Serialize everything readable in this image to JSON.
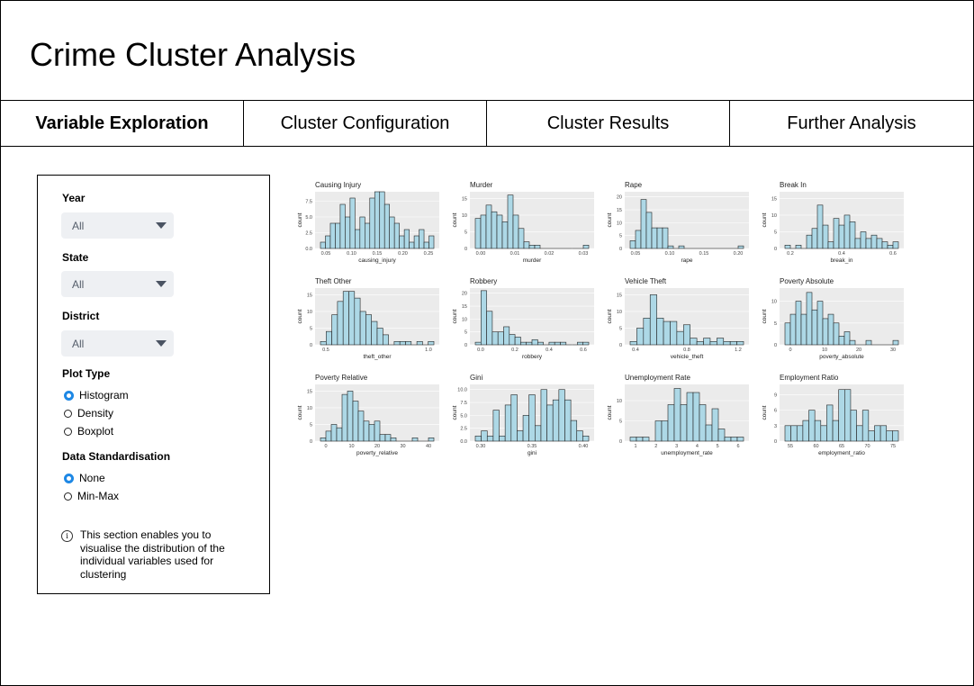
{
  "app": {
    "title": "Crime Cluster Analysis"
  },
  "tabs": [
    {
      "label": "Variable Exploration",
      "active": true
    },
    {
      "label": "Cluster Configuration",
      "active": false
    },
    {
      "label": "Cluster Results",
      "active": false
    },
    {
      "label": "Further Analysis",
      "active": false
    }
  ],
  "sidebar": {
    "year": {
      "label": "Year",
      "value": "All"
    },
    "state": {
      "label": "State",
      "value": "All"
    },
    "district": {
      "label": "District",
      "value": "All"
    },
    "plot_type": {
      "label": "Plot Type",
      "options": [
        "Histogram",
        "Density",
        "Boxplot"
      ],
      "selected": "Histogram"
    },
    "standardisation": {
      "label": "Data Standardisation",
      "options": [
        "None",
        "Min-Max"
      ],
      "selected": "None"
    },
    "info_icon": "info-icon",
    "info_text": "This section enables you to visualise the distribution of the individual variables used for clustering"
  },
  "colors": {
    "bar_fill": "#add8e6",
    "bar_stroke": "#222222",
    "panel_bg": "#ebebeb",
    "grid": "#ffffff",
    "radio_on": "#1e88e5"
  },
  "chart_data": [
    {
      "type": "bar",
      "title": "Causing Injury",
      "xlabel": "causing_injury",
      "ylabel": "count",
      "xticks": [
        "0.05",
        "0.10",
        "0.15",
        "0.20",
        "0.25"
      ],
      "yticks": [
        "0.0",
        "2.5",
        "5.0",
        "7.5"
      ],
      "ylim": [
        0,
        9
      ],
      "values": [
        1,
        2,
        4,
        4,
        7,
        5,
        8,
        3,
        5,
        4,
        8,
        9,
        9,
        7,
        5,
        4,
        2,
        3,
        1,
        2,
        3,
        1,
        2
      ]
    },
    {
      "type": "bar",
      "title": "Murder",
      "xlabel": "murder",
      "ylabel": "count",
      "xticks": [
        "0.00",
        "0.01",
        "0.02",
        "0.03"
      ],
      "yticks": [
        "0",
        "5",
        "10",
        "15"
      ],
      "ylim": [
        0,
        17
      ],
      "values": [
        9,
        10,
        13,
        11,
        10,
        8,
        16,
        10,
        6,
        2,
        1,
        1,
        0,
        0,
        0,
        0,
        0,
        0,
        0,
        0,
        1
      ]
    },
    {
      "type": "bar",
      "title": "Rape",
      "xlabel": "rape",
      "ylabel": "count",
      "xticks": [
        "0.05",
        "0.10",
        "0.15",
        "0.20"
      ],
      "yticks": [
        "0",
        "5",
        "10",
        "15",
        "20"
      ],
      "ylim": [
        0,
        22
      ],
      "values": [
        3,
        7,
        19,
        14,
        8,
        8,
        8,
        1,
        0,
        1,
        0,
        0,
        0,
        0,
        0,
        0,
        0,
        0,
        0,
        0,
        1
      ]
    },
    {
      "type": "bar",
      "title": "Break In",
      "xlabel": "break_in",
      "ylabel": "count",
      "xticks": [
        "0.2",
        "0.4",
        "0.6"
      ],
      "yticks": [
        "0",
        "5",
        "10",
        "15"
      ],
      "ylim": [
        0,
        17
      ],
      "values": [
        1,
        0,
        1,
        0,
        4,
        6,
        13,
        7,
        2,
        9,
        7,
        10,
        8,
        3,
        5,
        3,
        4,
        3,
        2,
        1,
        2
      ]
    },
    {
      "type": "bar",
      "title": "Theft Other",
      "xlabel": "theft_other",
      "ylabel": "count",
      "xticks": [
        "0.5",
        "1.0"
      ],
      "yticks": [
        "0",
        "5",
        "10",
        "15"
      ],
      "ylim": [
        0,
        17
      ],
      "values": [
        1,
        4,
        9,
        13,
        16,
        16,
        14,
        10,
        9,
        7,
        5,
        3,
        0,
        1,
        1,
        1,
        0,
        1,
        0,
        1
      ]
    },
    {
      "type": "bar",
      "title": "Robbery",
      "xlabel": "robbery",
      "ylabel": "count",
      "xticks": [
        "0.0",
        "0.2",
        "0.4",
        "0.6"
      ],
      "yticks": [
        "0",
        "5",
        "10",
        "15",
        "20"
      ],
      "ylim": [
        0,
        22
      ],
      "values": [
        1,
        21,
        13,
        5,
        5,
        7,
        4,
        3,
        1,
        1,
        2,
        1,
        0,
        1,
        1,
        1,
        0,
        0,
        1,
        1
      ]
    },
    {
      "type": "bar",
      "title": "Vehicle Theft",
      "xlabel": "vehicle_theft",
      "ylabel": "count",
      "xticks": [
        "0.4",
        "0.8",
        "1.2"
      ],
      "yticks": [
        "0",
        "5",
        "10",
        "15"
      ],
      "ylim": [
        0,
        17
      ],
      "values": [
        1,
        5,
        8,
        15,
        8,
        7,
        7,
        4,
        6,
        2,
        1,
        2,
        1,
        2,
        1,
        1,
        1
      ]
    },
    {
      "type": "bar",
      "title": "Poverty Absolute",
      "xlabel": "poverty_absolute",
      "ylabel": "count",
      "xticks": [
        "0",
        "10",
        "20",
        "30"
      ],
      "yticks": [
        "0",
        "5",
        "10"
      ],
      "ylim": [
        0,
        13
      ],
      "values": [
        5,
        7,
        10,
        7,
        12,
        8,
        10,
        6,
        7,
        5,
        2,
        3,
        1,
        0,
        0,
        1,
        0,
        0,
        0,
        0,
        1
      ]
    },
    {
      "type": "bar",
      "title": "Poverty Relative",
      "xlabel": "poverty_relative",
      "ylabel": "count",
      "xticks": [
        "0",
        "10",
        "20",
        "30",
        "40"
      ],
      "yticks": [
        "0",
        "5",
        "10",
        "15"
      ],
      "ylim": [
        0,
        17
      ],
      "values": [
        1,
        3,
        5,
        4,
        14,
        15,
        12,
        9,
        6,
        5,
        6,
        2,
        2,
        1,
        0,
        0,
        0,
        1,
        0,
        0,
        1
      ]
    },
    {
      "type": "bar",
      "title": "Gini",
      "xlabel": "gini",
      "ylabel": "count",
      "xticks": [
        "0.30",
        "0.35",
        "0.40"
      ],
      "yticks": [
        "0.0",
        "2.5",
        "5.0",
        "7.5",
        "10.0"
      ],
      "ylim": [
        0,
        11
      ],
      "values": [
        1,
        2,
        1,
        6,
        1,
        7,
        9,
        2,
        5,
        9,
        3,
        10,
        7,
        8,
        10,
        8,
        4,
        2,
        1
      ]
    },
    {
      "type": "bar",
      "title": "Unemployment Rate",
      "xlabel": "unemployment_rate",
      "ylabel": "count",
      "xticks": [
        "1",
        "2",
        "3",
        "4",
        "5",
        "6"
      ],
      "yticks": [
        "0",
        "5",
        "10"
      ],
      "ylim": [
        0,
        14
      ],
      "values": [
        1,
        1,
        1,
        0,
        5,
        5,
        9,
        13,
        9,
        12,
        12,
        9,
        4,
        8,
        3,
        1,
        1,
        1
      ]
    },
    {
      "type": "bar",
      "title": "Employment Ratio",
      "xlabel": "employment_ratio",
      "ylabel": "count",
      "xticks": [
        "55",
        "60",
        "65",
        "70",
        "75"
      ],
      "yticks": [
        "0",
        "3",
        "6",
        "9"
      ],
      "ylim": [
        0,
        11
      ],
      "values": [
        3,
        3,
        3,
        4,
        6,
        4,
        3,
        7,
        4,
        10,
        10,
        6,
        3,
        6,
        2,
        3,
        3,
        2,
        2
      ]
    }
  ]
}
